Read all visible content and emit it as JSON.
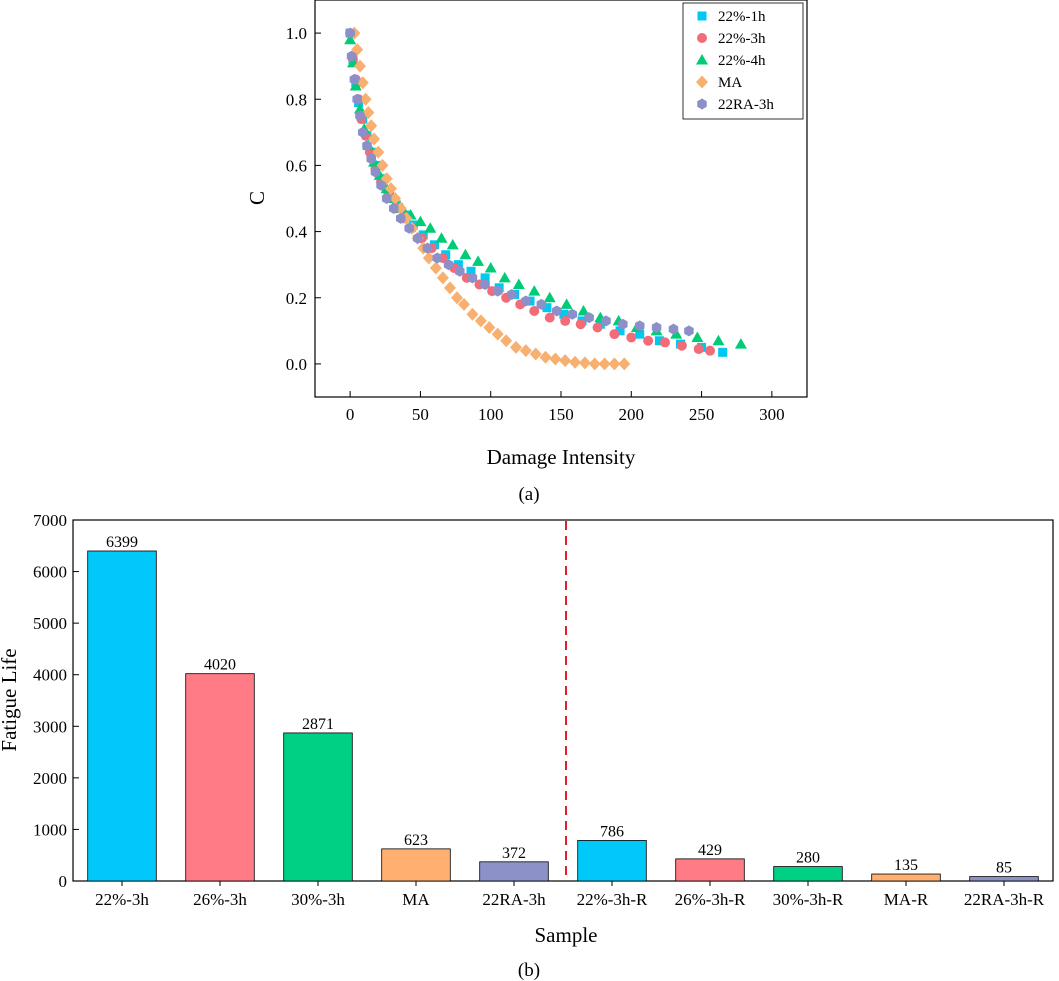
{
  "chart_data": [
    {
      "type": "scatter",
      "panel_label": "(a)",
      "xlabel": "Damage Intensity",
      "ylabel": "C",
      "xlim": [
        -25,
        325
      ],
      "ylim": [
        -0.1,
        1.1
      ],
      "x_ticks": [
        0,
        50,
        100,
        150,
        200,
        250,
        300
      ],
      "y_ticks": [
        0.0,
        0.2,
        0.4,
        0.6,
        0.8,
        1.0
      ],
      "legend_position": "top-right",
      "grid": false,
      "series": [
        {
          "name": "22%-1h",
          "color": "#00c8f0",
          "marker": "square",
          "x": [
            0,
            2,
            4,
            6,
            9,
            12,
            15,
            19,
            23,
            28,
            33,
            39,
            45,
            52,
            60,
            68,
            77,
            86,
            96,
            106,
            117,
            128,
            140,
            152,
            165,
            178,
            192,
            206,
            220,
            235,
            250,
            265
          ],
          "y": [
            1.0,
            0.92,
            0.85,
            0.79,
            0.74,
            0.69,
            0.64,
            0.6,
            0.56,
            0.52,
            0.48,
            0.45,
            0.42,
            0.39,
            0.36,
            0.33,
            0.3,
            0.28,
            0.26,
            0.23,
            0.21,
            0.19,
            0.17,
            0.15,
            0.13,
            0.12,
            0.1,
            0.09,
            0.07,
            0.06,
            0.05,
            0.035
          ]
        },
        {
          "name": "22%-3h",
          "color": "#f26b78",
          "marker": "circle",
          "x": [
            0,
            2,
            4,
            6,
            8,
            11,
            14,
            18,
            22,
            27,
            32,
            38,
            44,
            51,
            58,
            66,
            74,
            83,
            92,
            101,
            111,
            121,
            131,
            142,
            153,
            164,
            176,
            188,
            200,
            212,
            224,
            236,
            248,
            256
          ],
          "y": [
            1.0,
            0.92,
            0.86,
            0.8,
            0.74,
            0.69,
            0.64,
            0.59,
            0.55,
            0.51,
            0.47,
            0.44,
            0.41,
            0.38,
            0.35,
            0.32,
            0.29,
            0.26,
            0.24,
            0.22,
            0.2,
            0.18,
            0.16,
            0.14,
            0.13,
            0.12,
            0.11,
            0.09,
            0.08,
            0.07,
            0.065,
            0.055,
            0.045,
            0.04
          ]
        },
        {
          "name": "22%-4h",
          "color": "#00cc77",
          "marker": "triangle",
          "x": [
            0,
            2,
            4,
            7,
            10,
            13,
            17,
            21,
            26,
            31,
            37,
            43,
            50,
            57,
            65,
            73,
            82,
            91,
            100,
            110,
            120,
            131,
            142,
            154,
            166,
            178,
            191,
            204,
            218,
            232,
            247,
            262,
            278
          ],
          "y": [
            0.98,
            0.91,
            0.84,
            0.77,
            0.71,
            0.66,
            0.61,
            0.57,
            0.53,
            0.5,
            0.47,
            0.45,
            0.43,
            0.41,
            0.38,
            0.36,
            0.33,
            0.31,
            0.29,
            0.26,
            0.24,
            0.22,
            0.2,
            0.18,
            0.16,
            0.14,
            0.13,
            0.11,
            0.1,
            0.09,
            0.08,
            0.07,
            0.06
          ]
        },
        {
          "name": "MA",
          "color": "#f8b070",
          "marker": "diamond",
          "x": [
            3,
            5,
            7,
            9,
            11,
            13,
            15,
            17,
            20,
            23,
            26,
            29,
            32,
            36,
            40,
            44,
            48,
            52,
            56,
            61,
            66,
            71,
            76,
            81,
            87,
            93,
            99,
            105,
            111,
            118,
            125,
            132,
            139,
            146,
            153,
            160,
            167,
            174,
            181,
            188,
            195
          ],
          "y": [
            1.0,
            0.95,
            0.9,
            0.85,
            0.8,
            0.76,
            0.72,
            0.68,
            0.64,
            0.6,
            0.56,
            0.53,
            0.5,
            0.47,
            0.44,
            0.41,
            0.38,
            0.35,
            0.32,
            0.29,
            0.26,
            0.23,
            0.2,
            0.18,
            0.15,
            0.13,
            0.11,
            0.09,
            0.07,
            0.05,
            0.04,
            0.03,
            0.02,
            0.015,
            0.01,
            0.005,
            0.003,
            0.0,
            0.0,
            0.0,
            0.0
          ]
        },
        {
          "name": "22RA-3h",
          "color": "#8c8fc8",
          "marker": "hexagon",
          "x": [
            0,
            1,
            3,
            5,
            7,
            9,
            12,
            15,
            18,
            22,
            26,
            31,
            36,
            42,
            48,
            55,
            62,
            70,
            78,
            87,
            96,
            105,
            115,
            125,
            136,
            147,
            158,
            170,
            182,
            194,
            206,
            218,
            230,
            241
          ],
          "y": [
            1.0,
            0.93,
            0.86,
            0.8,
            0.75,
            0.7,
            0.66,
            0.62,
            0.58,
            0.54,
            0.5,
            0.47,
            0.44,
            0.41,
            0.38,
            0.35,
            0.32,
            0.3,
            0.28,
            0.26,
            0.24,
            0.22,
            0.21,
            0.19,
            0.18,
            0.16,
            0.15,
            0.14,
            0.13,
            0.12,
            0.115,
            0.11,
            0.105,
            0.1
          ]
        }
      ]
    },
    {
      "type": "bar",
      "panel_label": "(b)",
      "xlabel": "Sample",
      "ylabel": "Fatigue Life",
      "ylim": [
        0,
        7000
      ],
      "y_ticks": [
        0,
        1000,
        2000,
        3000,
        4000,
        5000,
        6000,
        7000
      ],
      "categories": [
        "22%-3h",
        "26%-3h",
        "30%-3h",
        "MA",
        "22RA-3h",
        "22%-3h-R",
        "26%-3h-R",
        "30%-3h-R",
        "MA-R",
        "22RA-3h-R"
      ],
      "values": [
        6399,
        4020,
        2871,
        623,
        372,
        786,
        429,
        280,
        135,
        85
      ],
      "value_labels": [
        "6399",
        "4020",
        "2871",
        "623",
        "372",
        "786",
        "429",
        "280",
        "135",
        "85"
      ],
      "colors": [
        "#00c8f8",
        "#ff7b85",
        "#00d084",
        "#ffb070",
        "#8c92c8",
        "#00c8f8",
        "#ff7b85",
        "#00d084",
        "#ffb070",
        "#8c92c8"
      ],
      "divider_color": "#e0202a",
      "grid": false
    }
  ]
}
